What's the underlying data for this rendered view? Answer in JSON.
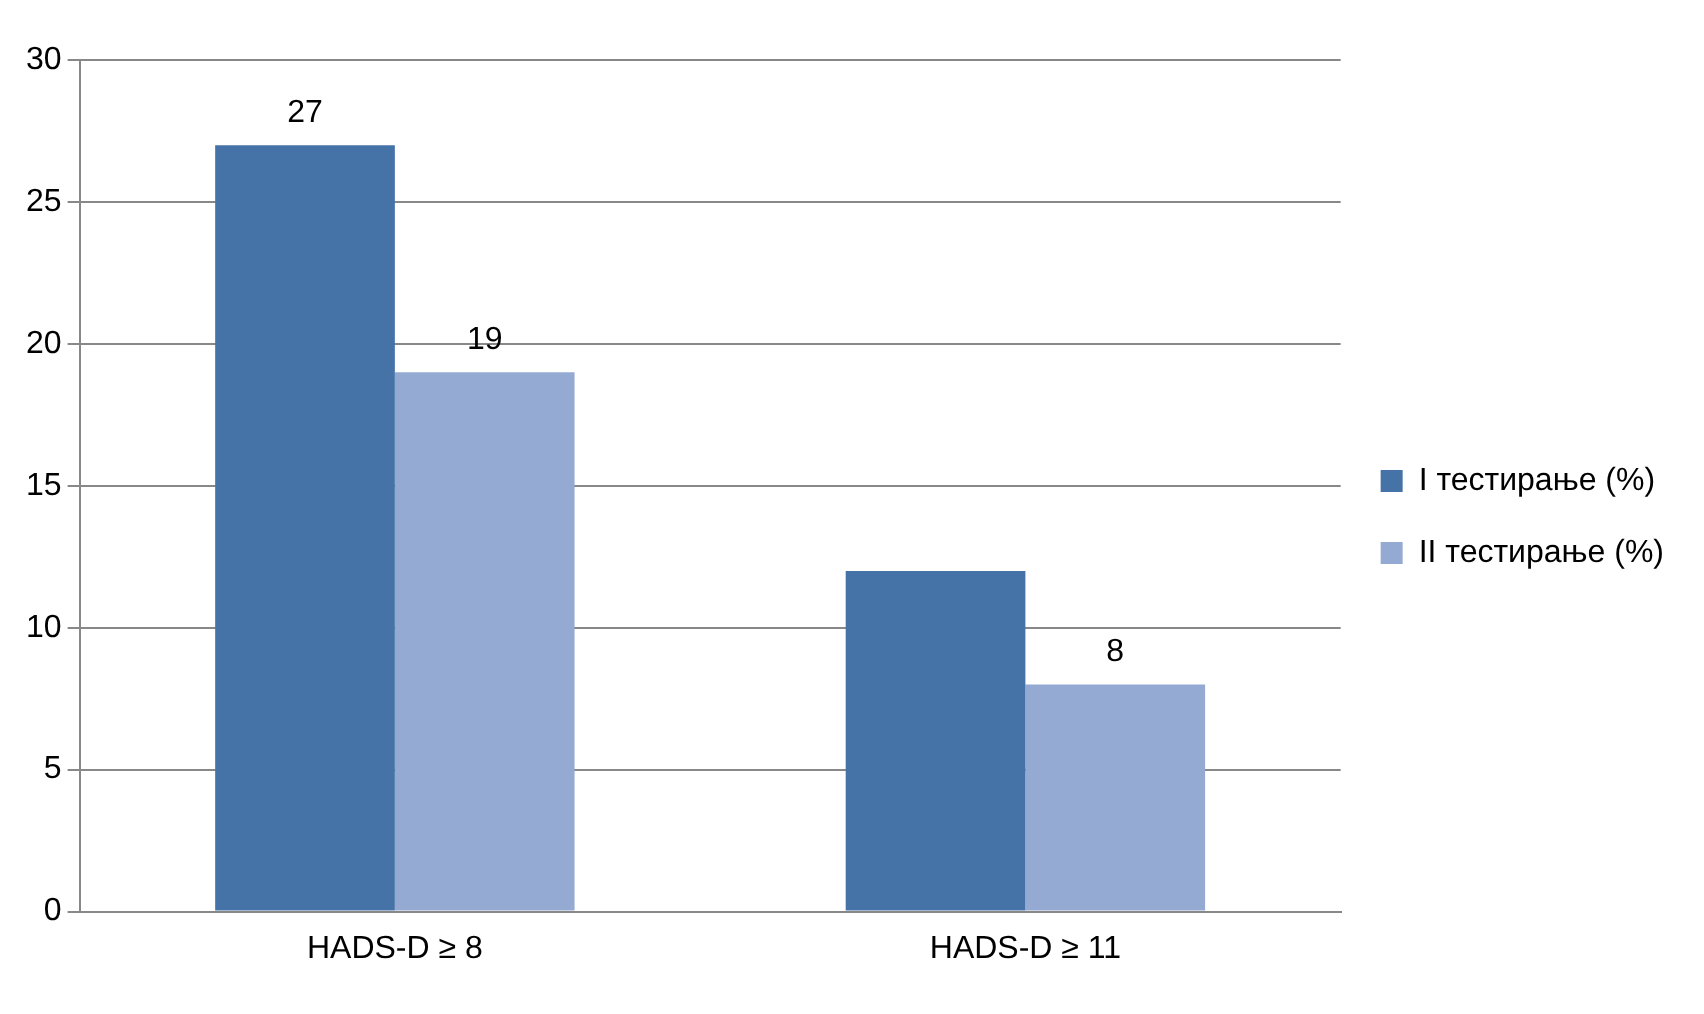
{
  "chart_data": {
    "type": "bar",
    "categories": [
      "HADS-D ≥ 8",
      "HADS-D ≥ 11"
    ],
    "series": [
      {
        "name": "I тестирање (%)",
        "color": "#4673a7",
        "values": [
          27,
          12
        ],
        "value_labels": [
          "27",
          null
        ]
      },
      {
        "name": "II тестирање (%)",
        "color": "#95aad3",
        "values": [
          19,
          8
        ],
        "value_labels": [
          "19",
          "8"
        ]
      }
    ],
    "ylim": [
      0,
      30
    ],
    "yticks": [
      0,
      5,
      10,
      15,
      20,
      25,
      30
    ],
    "grid": "y",
    "legend": "right"
  }
}
